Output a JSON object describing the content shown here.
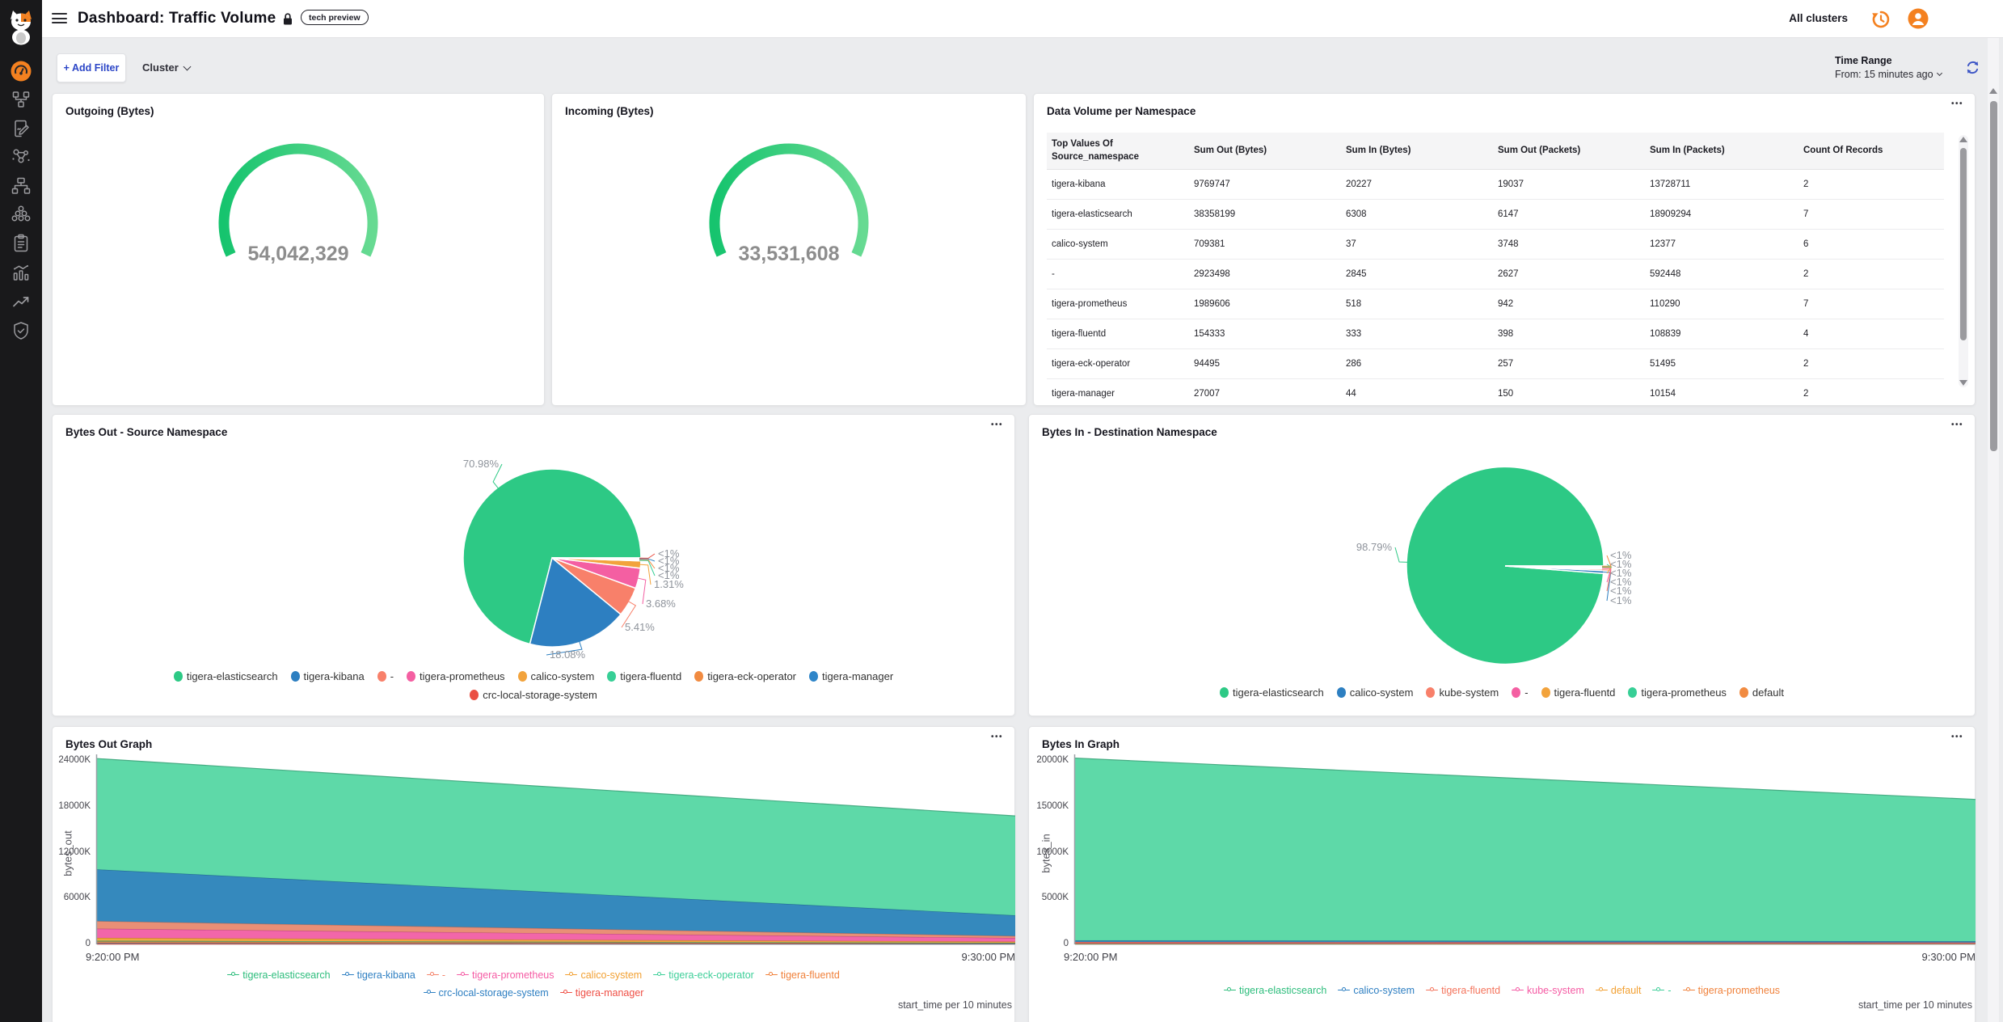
{
  "colors": {
    "accent_orange": "#f48120",
    "link_blue": "#2c46c7",
    "gauge_green_start": "#16c46e",
    "gauge_green_end": "#67da92"
  },
  "icons": {
    "more_menu": "•••"
  },
  "header": {
    "title": "Dashboard: Traffic Volume",
    "badge": "tech preview",
    "all_clusters": "All clusters"
  },
  "filter_bar": {
    "add_filter": "+ Add Filter",
    "cluster": "Cluster",
    "time_range_label": "Time Range",
    "time_range_value": "From: 15 minutes ago"
  },
  "cards": {
    "outgoing": {
      "title": "Outgoing (Bytes)"
    },
    "incoming": {
      "title": "Incoming (Bytes)"
    },
    "data_volume": {
      "title": "Data Volume per Namespace"
    },
    "bytes_out_pie": {
      "title": "Bytes Out - Source Namespace"
    },
    "bytes_in_pie": {
      "title": "Bytes In - Destination Namespace"
    },
    "bytes_out_graph": {
      "title": "Bytes Out Graph"
    },
    "bytes_in_graph": {
      "title": "Bytes In Graph"
    }
  },
  "label_color": "#8e939b",
  "chart_data": [
    {
      "id": "outgoing_gauge",
      "type": "gauge",
      "title": "Outgoing (Bytes)",
      "value": 54042329,
      "display": "54,042,329"
    },
    {
      "id": "incoming_gauge",
      "type": "gauge",
      "title": "Incoming (Bytes)",
      "value": 33531608,
      "display": "33,531,608"
    },
    {
      "id": "namespace_table",
      "type": "table",
      "title": "Data Volume per Namespace",
      "columns": [
        "Top Values Of Source_namespace",
        "Sum Out (Bytes)",
        "Sum In (Bytes)",
        "Sum Out (Packets)",
        "Sum In (Packets)",
        "Count Of Records"
      ],
      "rows": [
        [
          "tigera-kibana",
          "9769747",
          "20227",
          "19037",
          "13728711",
          "2"
        ],
        [
          "tigera-elasticsearch",
          "38358199",
          "6308",
          "6147",
          "18909294",
          "7"
        ],
        [
          "calico-system",
          "709381",
          "37",
          "3748",
          "12377",
          "6"
        ],
        [
          "-",
          "2923498",
          "2845",
          "2627",
          "592448",
          "2"
        ],
        [
          "tigera-prometheus",
          "1989606",
          "518",
          "942",
          "110290",
          "7"
        ],
        [
          "tigera-fluentd",
          "154333",
          "333",
          "398",
          "108839",
          "4"
        ],
        [
          "tigera-eck-operator",
          "94495",
          "286",
          "257",
          "51495",
          "2"
        ],
        [
          "tigera-manager",
          "27007",
          "44",
          "150",
          "10154",
          "2"
        ]
      ]
    },
    {
      "id": "bytes_out_pie",
      "type": "pie",
      "title": "Bytes Out - Source Namespace",
      "slices": [
        {
          "label": "tigera-elasticsearch",
          "pct": 70.98,
          "display": "70.98%",
          "color": "#2dc985"
        },
        {
          "label": "tigera-kibana",
          "pct": 18.08,
          "display": "18.08%",
          "color": "#2d7fc1"
        },
        {
          "label": "-",
          "pct": 5.41,
          "display": "5.41%",
          "color": "#f8806a"
        },
        {
          "label": "tigera-prometheus",
          "pct": 3.68,
          "display": "3.68%",
          "color": "#f45fa2"
        },
        {
          "label": "calico-system",
          "pct": 1.31,
          "display": "1.31%",
          "color": "#f2a33c"
        },
        {
          "label": "tigera-fluentd",
          "pct": 0.18,
          "display": "<1%",
          "color": "#37cf96"
        },
        {
          "label": "tigera-eck-operator",
          "pct": 0.14,
          "display": "<1%",
          "color": "#f18b41"
        },
        {
          "label": "tigera-manager",
          "pct": 0.12,
          "display": "<1%",
          "color": "#2f86c9"
        },
        {
          "label": "crc-local-storage-system",
          "pct": 0.1,
          "display": "<1%",
          "color": "#ea4f43"
        }
      ],
      "legend_rows": [
        [
          "tigera-elasticsearch",
          "tigera-kibana",
          "-",
          "tigera-prometheus",
          "calico-system",
          "tigera-fluentd",
          "tigera-eck-operator",
          "tigera-manager"
        ],
        [
          "crc-local-storage-system"
        ]
      ]
    },
    {
      "id": "bytes_in_pie",
      "type": "pie",
      "title": "Bytes In - Destination Namespace",
      "slices": [
        {
          "label": "tigera-elasticsearch",
          "pct": 98.79,
          "display": "98.79%",
          "color": "#2dc985"
        },
        {
          "label": "calico-system",
          "pct": 0.45,
          "display": "<1%",
          "color": "#2d7fc1"
        },
        {
          "label": "kube-system",
          "pct": 0.28,
          "display": "<1%",
          "color": "#f8806a"
        },
        {
          "label": "-",
          "pct": 0.18,
          "display": "<1%",
          "color": "#f45fa2"
        },
        {
          "label": "tigera-fluentd",
          "pct": 0.12,
          "display": "<1%",
          "color": "#f2a33c"
        },
        {
          "label": "tigera-prometheus",
          "pct": 0.1,
          "display": "<1%",
          "color": "#37cf96"
        },
        {
          "label": "default",
          "pct": 0.08,
          "display": "<1%",
          "color": "#f18b41"
        }
      ],
      "legend_rows": [
        [
          "tigera-elasticsearch",
          "calico-system",
          "kube-system",
          "-",
          "tigera-fluentd",
          "tigera-prometheus",
          "default"
        ]
      ]
    },
    {
      "id": "bytes_out_graph",
      "type": "area",
      "stacked": true,
      "title": "Bytes Out Graph",
      "ylabel": "bytes_out",
      "x_labels": [
        "9:20:00 PM",
        "9:30:00 PM"
      ],
      "x_note": "start_time per 10 minutes",
      "yticks": [
        "0",
        "6000K",
        "12000K",
        "18000K",
        "24000K"
      ],
      "ymax_k": 24000,
      "series_bottom_up": [
        {
          "label": "tigera-manager",
          "color": "#ef5a4e",
          "legend_color": "#ef4f45",
          "top_k": [
            120,
            60
          ]
        },
        {
          "label": "crc-local-storage-system",
          "color": "#2f86c9",
          "legend_color": "#2e7fc2",
          "top_k": [
            180,
            90
          ]
        },
        {
          "label": "tigera-fluentd",
          "color": "#f0813b",
          "legend_color": "#f0813b",
          "top_k": [
            380,
            170
          ]
        },
        {
          "label": "tigera-eck-operator",
          "color": "#3ecf99",
          "legend_color": "#3ecf99",
          "top_k": [
            480,
            210
          ]
        },
        {
          "label": "calico-system",
          "color": "#f2a338",
          "legend_color": "#f2a032",
          "top_k": [
            850,
            360
          ]
        },
        {
          "label": "tigera-prometheus",
          "color": "#f160a5",
          "legend_color": "#f55ba4",
          "top_k": [
            2050,
            830
          ]
        },
        {
          "label": "-",
          "color": "#e88a70",
          "legend_color": "#f4836a",
          "top_k": [
            3050,
            1100
          ]
        },
        {
          "label": "tigera-kibana",
          "color": "#2d84ba",
          "legend_color": "#2e7fc2",
          "top_k": [
            9800,
            3800
          ]
        },
        {
          "label": "tigera-elasticsearch",
          "color": "#57d7a4",
          "legend_color": "#2dbd7c",
          "top_k": [
            24300,
            16800
          ]
        }
      ],
      "legend_rows": [
        [
          "tigera-elasticsearch",
          "tigera-kibana",
          "-",
          "tigera-prometheus",
          "calico-system",
          "tigera-eck-operator",
          "tigera-fluentd"
        ],
        [
          "crc-local-storage-system",
          "tigera-manager"
        ]
      ]
    },
    {
      "id": "bytes_in_graph",
      "type": "area",
      "stacked": true,
      "title": "Bytes In Graph",
      "ylabel": "bytes_in",
      "x_labels": [
        "9:20:00 PM",
        "9:30:00 PM"
      ],
      "x_note": "start_time per 10 minutes",
      "yticks": [
        "0",
        "5000K",
        "10000K",
        "15000K",
        "20000K"
      ],
      "ymax_k": 20000,
      "series_bottom_up": [
        {
          "label": "tigera-prometheus",
          "color": "#f0823c",
          "legend_color": "#f0823c",
          "top_k": [
            55,
            45
          ]
        },
        {
          "label": "-",
          "color": "#3ecf99",
          "legend_color": "#3ecf99",
          "top_k": [
            85,
            70
          ]
        },
        {
          "label": "default",
          "color": "#f2a338",
          "legend_color": "#f2a032",
          "top_k": [
            120,
            95
          ]
        },
        {
          "label": "kube-system",
          "color": "#f160a5",
          "legend_color": "#f55ba4",
          "top_k": [
            160,
            125
          ]
        },
        {
          "label": "tigera-fluentd",
          "color": "#f4745c",
          "legend_color": "#f4745c",
          "top_k": [
            260,
            200
          ]
        },
        {
          "label": "calico-system",
          "color": "#2d84ba",
          "legend_color": "#2e7fc2",
          "top_k": [
            430,
            340
          ]
        },
        {
          "label": "tigera-elasticsearch",
          "color": "#57d7a4",
          "legend_color": "#2dbd7c",
          "top_k": [
            20300,
            15800
          ]
        }
      ],
      "legend_rows": [
        [
          "tigera-elasticsearch",
          "calico-system",
          "tigera-fluentd",
          "kube-system",
          "default",
          "-",
          "tigera-prometheus"
        ]
      ]
    }
  ]
}
